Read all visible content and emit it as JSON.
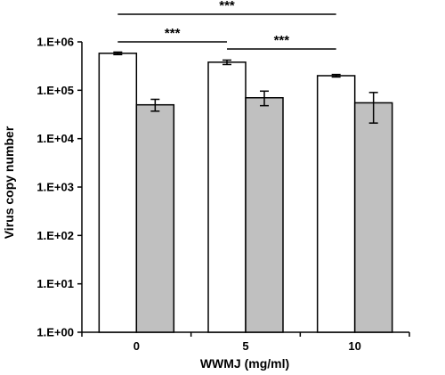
{
  "chart_data": {
    "type": "bar",
    "scale": "log",
    "xlabel": "WWMJ (mg/ml)",
    "ylabel": "Virus copy number",
    "categories": [
      "0",
      "5",
      "10"
    ],
    "yticks": [
      "1.E+00",
      "1.E+01",
      "1.E+02",
      "1.E+03",
      "1.E+04",
      "1.E+05",
      "1.E+06"
    ],
    "ylim": [
      1,
      1000000
    ],
    "series": [
      {
        "color": "#ffffff",
        "values": [
          580000,
          380000,
          200000
        ],
        "err_low": [
          545000,
          340000,
          188000
        ],
        "err_high": [
          615000,
          420000,
          212000
        ]
      },
      {
        "color": "#c0c0c0",
        "values": [
          50000,
          70000,
          55000
        ],
        "err_low": [
          37000,
          48000,
          21000
        ],
        "err_high": [
          65000,
          96000,
          90000
        ]
      }
    ],
    "significance": [
      {
        "from": "0",
        "to": "10",
        "label": "***"
      },
      {
        "from": "0",
        "to": "5",
        "label": "***"
      },
      {
        "from": "5",
        "to": "10",
        "label": "***"
      }
    ]
  }
}
